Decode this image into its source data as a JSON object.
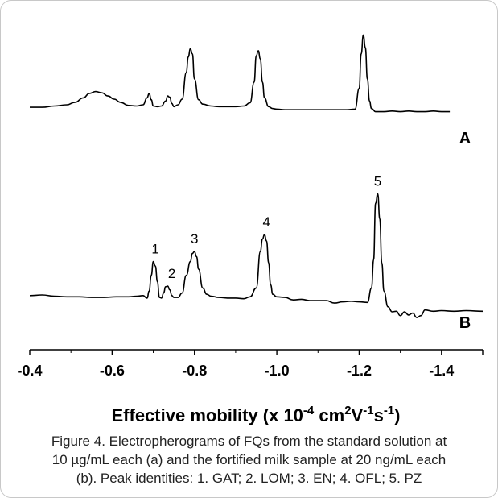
{
  "chart_data": {
    "type": "line",
    "xlabel": {
      "prefix": "Effective mobility (x 10",
      "exp1": "-4",
      "unit_cm": " cm",
      "exp2": "2",
      "unit_v": "V",
      "exp3": "-1",
      "unit_s": "s",
      "exp4": "-1",
      "suffix": ")"
    },
    "xlim": [
      -0.4,
      -1.5
    ],
    "x_ticks": [
      -0.4,
      -0.6,
      -0.8,
      -1.0,
      -1.2,
      -1.4
    ],
    "x_tick_labels": [
      "-0.4",
      "-0.6",
      "-0.8",
      "-1.0",
      "-1.2",
      "-1.4"
    ],
    "series": [
      {
        "name": "A",
        "x": [
          -0.4,
          -0.43,
          -0.46,
          -0.49,
          -0.51,
          -0.53,
          -0.545,
          -0.56,
          -0.575,
          -0.59,
          -0.605,
          -0.62,
          -0.64,
          -0.66,
          -0.675,
          -0.685,
          -0.69,
          -0.695,
          -0.7,
          -0.71,
          -0.72,
          -0.73,
          -0.735,
          -0.74,
          -0.745,
          -0.75,
          -0.76,
          -0.77,
          -0.78,
          -0.785,
          -0.79,
          -0.795,
          -0.8,
          -0.81,
          -0.82,
          -0.84,
          -0.86,
          -0.88,
          -0.9,
          -0.92,
          -0.935,
          -0.945,
          -0.95,
          -0.955,
          -0.96,
          -0.965,
          -0.97,
          -0.98,
          -0.99,
          -1.0,
          -1.02,
          -1.05,
          -1.08,
          -1.11,
          -1.14,
          -1.17,
          -1.19,
          -1.2,
          -1.205,
          -1.21,
          -1.215,
          -1.22,
          -1.225,
          -1.23,
          -1.24,
          -1.26,
          -1.28,
          -1.3,
          -1.32,
          -1.34,
          -1.36,
          -1.38,
          -1.4,
          -1.42
        ],
        "y": [
          0.05,
          0.05,
          0.07,
          0.09,
          0.13,
          0.2,
          0.27,
          0.3,
          0.28,
          0.23,
          0.18,
          0.13,
          0.08,
          0.07,
          0.09,
          0.2,
          0.27,
          0.17,
          0.07,
          0.06,
          0.07,
          0.15,
          0.23,
          0.21,
          0.11,
          0.06,
          0.09,
          0.18,
          0.6,
          0.85,
          0.98,
          0.9,
          0.5,
          0.17,
          0.1,
          0.07,
          0.06,
          0.06,
          0.06,
          0.07,
          0.12,
          0.45,
          0.87,
          0.95,
          0.82,
          0.45,
          0.2,
          0.06,
          0.03,
          0.02,
          0.01,
          0.01,
          0.01,
          0.01,
          0.01,
          0.01,
          0.02,
          0.35,
          0.9,
          1.2,
          1.0,
          0.5,
          0.15,
          0.03,
          -0.02,
          -0.02,
          -0.01,
          -0.02,
          -0.01,
          -0.02,
          -0.02,
          -0.01,
          -0.02,
          -0.02
        ]
      },
      {
        "name": "B",
        "x": [
          -0.4,
          -0.43,
          -0.46,
          -0.49,
          -0.52,
          -0.55,
          -0.58,
          -0.61,
          -0.64,
          -0.66,
          -0.675,
          -0.685,
          -0.69,
          -0.695,
          -0.7,
          -0.705,
          -0.71,
          -0.715,
          -0.72,
          -0.725,
          -0.73,
          -0.735,
          -0.74,
          -0.745,
          -0.75,
          -0.76,
          -0.77,
          -0.78,
          -0.79,
          -0.795,
          -0.8,
          -0.805,
          -0.81,
          -0.82,
          -0.83,
          -0.84,
          -0.86,
          -0.88,
          -0.9,
          -0.92,
          -0.935,
          -0.95,
          -0.96,
          -0.965,
          -0.97,
          -0.975,
          -0.98,
          -0.985,
          -0.99,
          -1.0,
          -1.02,
          -1.04,
          -1.06,
          -1.08,
          -1.1,
          -1.12,
          -1.14,
          -1.16,
          -1.18,
          -1.2,
          -1.22,
          -1.23,
          -1.235,
          -1.24,
          -1.245,
          -1.25,
          -1.255,
          -1.26,
          -1.27,
          -1.28,
          -1.29,
          -1.3,
          -1.31,
          -1.32,
          -1.33,
          -1.34,
          -1.35,
          -1.36,
          -1.38,
          -1.4,
          -1.43,
          -1.46,
          -1.5
        ],
        "y": [
          0.08,
          0.09,
          0.07,
          0.06,
          0.06,
          0.05,
          0.05,
          0.06,
          0.06,
          0.07,
          0.08,
          0.04,
          0.15,
          0.4,
          0.62,
          0.55,
          0.3,
          0.05,
          0.04,
          0.12,
          0.22,
          0.23,
          0.17,
          0.08,
          0.05,
          0.05,
          0.12,
          0.4,
          0.62,
          0.75,
          0.78,
          0.7,
          0.5,
          0.2,
          0.1,
          0.07,
          0.05,
          0.04,
          0.04,
          0.03,
          0.06,
          0.2,
          0.78,
          0.98,
          1.05,
          0.95,
          0.6,
          0.25,
          0.1,
          0.06,
          0.05,
          0.01,
          0.02,
          0.0,
          0.0,
          0.0,
          -0.04,
          -0.02,
          -0.01,
          -0.02,
          -0.03,
          0.2,
          0.65,
          1.55,
          1.7,
          1.3,
          0.6,
          0.15,
          -0.1,
          -0.18,
          -0.17,
          -0.24,
          -0.18,
          -0.23,
          -0.2,
          -0.27,
          -0.24,
          -0.15,
          -0.17,
          -0.16,
          -0.17,
          -0.16,
          -0.17
        ]
      }
    ],
    "series_labels": [
      "A",
      "B"
    ],
    "annotations": [
      {
        "text": "1",
        "x": -0.705,
        "y": 0.62
      },
      {
        "text": "2",
        "x": -0.745,
        "y": 0.23
      },
      {
        "text": "3",
        "x": -0.8,
        "y": 0.78
      },
      {
        "text": "4",
        "x": -0.975,
        "y": 1.05
      },
      {
        "text": "5",
        "x": -1.245,
        "y": 1.7
      }
    ],
    "grid": false
  },
  "caption": [
    "Figure 4. Electropherograms of FQs from the standard solution at",
    "10 µg/mL each (a) and the fortified milk sample at 20 ng/mL each",
    "(b). Peak identities: 1. GAT; 2. LOM; 3. EN; 4. OFL; 5. PZ"
  ]
}
